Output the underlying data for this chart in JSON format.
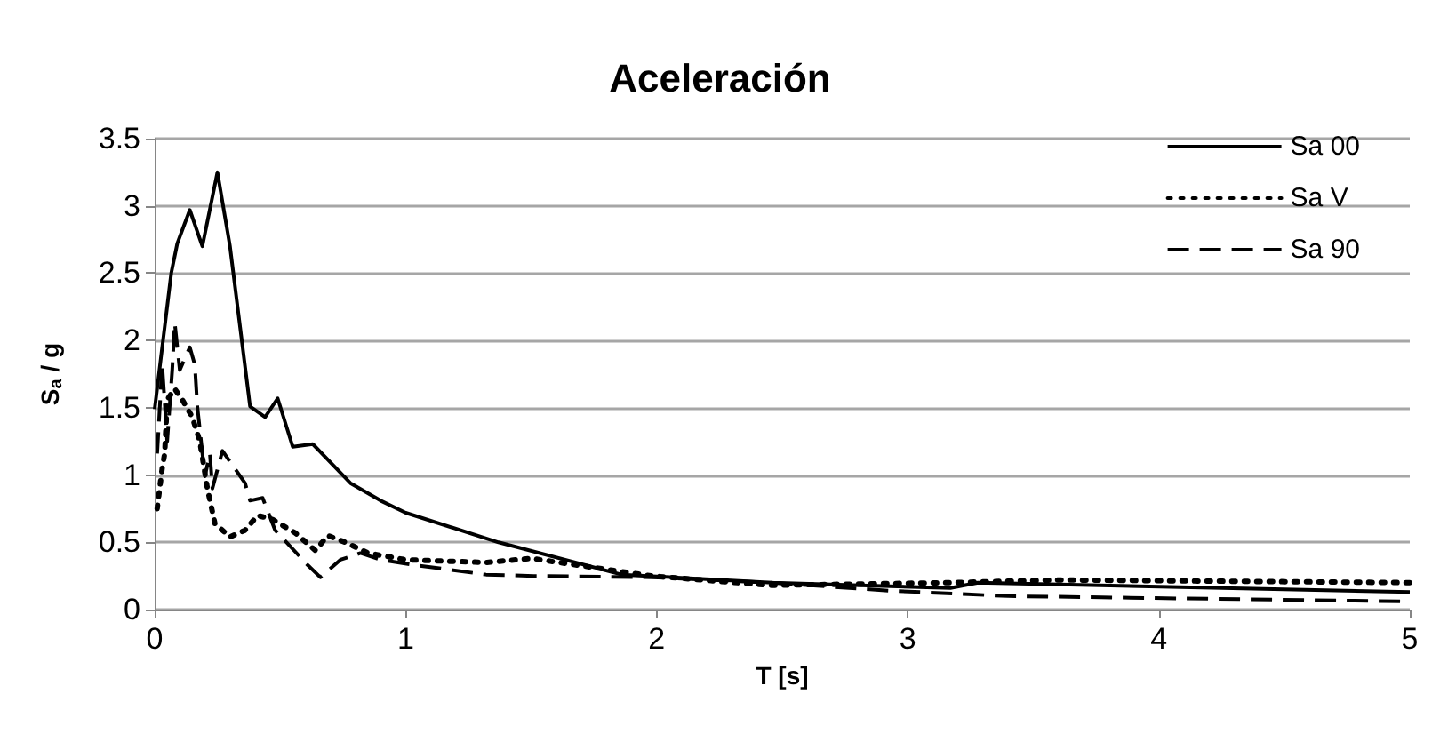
{
  "chart_data": {
    "type": "line",
    "title": "Aceleración",
    "xlabel": "T [s]",
    "ylabel": "S$_{a}$ / g",
    "xlim": [
      0,
      5
    ],
    "xticks": [
      0,
      1,
      2,
      3,
      4,
      5
    ],
    "ylim": [
      0,
      3.5
    ],
    "yticks": [
      0,
      0.5,
      1,
      1.5,
      2,
      2.5,
      3,
      3.5
    ],
    "grid": "y",
    "legend": "top right",
    "marker": "none",
    "series": [
      {
        "name": "Sa 00",
        "color": "#000000",
        "line_style": "solid",
        "x": [
          0,
          0.066,
          0.09,
          0.14,
          0.19,
          0.25,
          0.3,
          0.38,
          0.44,
          0.49,
          0.55,
          0.63,
          0.78,
          0.9,
          1.0,
          1.37,
          1.86,
          2.46,
          3.17,
          3.28,
          5.0
        ],
        "values": [
          1.49,
          2.5,
          2.72,
          2.97,
          2.7,
          3.25,
          2.7,
          1.51,
          1.43,
          1.57,
          1.21,
          1.23,
          0.94,
          0.81,
          0.72,
          0.5,
          0.26,
          0.2,
          0.16,
          0.2,
          0.13
        ]
      },
      {
        "name": "Sa V",
        "color": "#000000",
        "line_style": "dotted",
        "x": [
          0.01,
          0.03,
          0.04,
          0.05,
          0.08,
          0.11,
          0.15,
          0.18,
          0.21,
          0.24,
          0.3,
          0.36,
          0.41,
          0.47,
          0.56,
          0.64,
          0.69,
          0.76,
          0.85,
          1.0,
          1.32,
          1.5,
          1.98,
          2.45,
          3.17,
          3.6,
          5.0
        ],
        "values": [
          0.75,
          1.05,
          1.16,
          1.56,
          1.64,
          1.56,
          1.43,
          1.25,
          0.9,
          0.64,
          0.54,
          0.59,
          0.7,
          0.67,
          0.57,
          0.44,
          0.55,
          0.5,
          0.42,
          0.37,
          0.35,
          0.38,
          0.25,
          0.18,
          0.2,
          0.22,
          0.2
        ]
      },
      {
        "name": "Sa 90",
        "color": "#000000",
        "line_style": "dashed",
        "x": [
          0.01,
          0.03,
          0.05,
          0.07,
          0.08,
          0.1,
          0.14,
          0.16,
          0.17,
          0.2,
          0.22,
          0.23,
          0.27,
          0.36,
          0.38,
          0.43,
          0.48,
          0.61,
          0.66,
          0.74,
          0.82,
          0.9,
          1.04,
          1.32,
          1.51,
          1.98,
          2.45,
          2.93,
          3.4,
          5.0
        ],
        "values": [
          1.16,
          1.82,
          1.25,
          1.78,
          2.13,
          1.78,
          1.95,
          1.82,
          1.51,
          0.99,
          1.16,
          0.9,
          1.18,
          0.94,
          0.81,
          0.83,
          0.59,
          0.33,
          0.24,
          0.37,
          0.42,
          0.37,
          0.33,
          0.26,
          0.25,
          0.24,
          0.2,
          0.14,
          0.1,
          0.06
        ]
      }
    ]
  }
}
